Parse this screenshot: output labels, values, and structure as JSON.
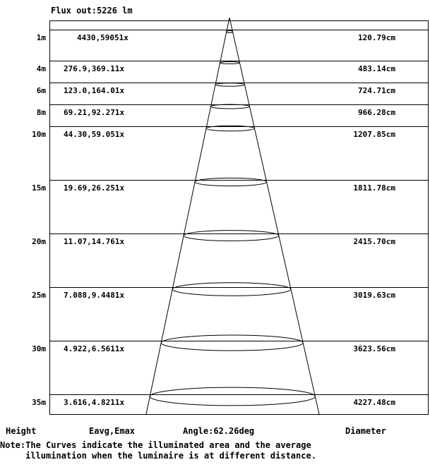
{
  "flux_label": "Flux out:5226 lm",
  "footer": {
    "height_label": "Height",
    "illum_label": "Eavg,Emax",
    "angle_label": "Angle:62.26deg",
    "diameter_label": "Diameter"
  },
  "note": {
    "line1": "Note:The Curves indicate the illuminated area and the average",
    "line2": "     illumination when the luminaire is at different distance."
  },
  "rows": [
    {
      "distance": "1m",
      "illuminance": "4430,59051x",
      "diameter": "120.79cm"
    },
    {
      "distance": "4m",
      "illuminance": "276.9,369.11x",
      "diameter": "483.14cm"
    },
    {
      "distance": "6m",
      "illuminance": "123.0,164.01x",
      "diameter": "724.71cm"
    },
    {
      "distance": "8m",
      "illuminance": "69.21,92.271x",
      "diameter": "966.28cm"
    },
    {
      "distance": "10m",
      "illuminance": "44.30,59.051x",
      "diameter": "1207.85cm"
    },
    {
      "distance": "15m",
      "illuminance": "19.69,26.251x",
      "diameter": "1811.78cm"
    },
    {
      "distance": "20m",
      "illuminance": "11.07,14.761x",
      "diameter": "2415.70cm"
    },
    {
      "distance": "25m",
      "illuminance": "7.088,9.4481x",
      "diameter": "3019.63cm"
    },
    {
      "distance": "30m",
      "illuminance": "4.922,6.5611x",
      "diameter": "3623.56cm"
    },
    {
      "distance": "35m",
      "illuminance": "3.616,4.8211x",
      "diameter": "4227.48cm"
    }
  ]
}
